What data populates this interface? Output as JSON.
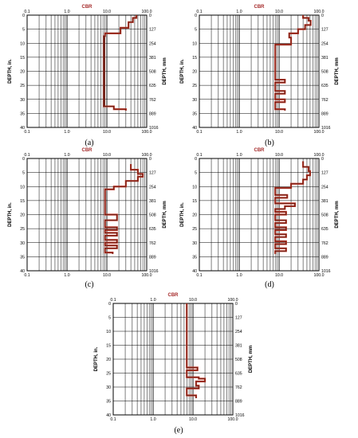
{
  "figure": {
    "x_axis_label": "CBR",
    "y_axis_label_left": "DEPTH, in.",
    "y_axis_label_right": "DEPTH, mm",
    "x_ticks": [
      "0.1",
      "1.0",
      "10.0",
      "100.0"
    ],
    "y_ticks_in": [
      "0",
      "5",
      "10",
      "15",
      "20",
      "25",
      "30",
      "35",
      "40"
    ],
    "y_ticks_mm": [
      "0",
      "127",
      "254",
      "381",
      "508",
      "635",
      "762",
      "889",
      "1016"
    ],
    "colors": {
      "profile": "#c0392b",
      "profile_dark": "#5a1a10",
      "grid": "#000000",
      "title": "#a52a2a"
    }
  },
  "chart_data": [
    {
      "type": "line",
      "panel": "(a)",
      "x_scale": "log",
      "xlim": [
        0.1,
        100
      ],
      "ylim": [
        0,
        40
      ],
      "y_inverted": true,
      "grid": true,
      "xlabel": "CBR",
      "ylabel": "DEPTH, in.",
      "ylabel_right": "DEPTH, mm",
      "series": [
        {
          "points": [
            [
              55,
              0
            ],
            [
              55,
              1
            ],
            [
              45,
              1
            ],
            [
              45,
              2.5
            ],
            [
              35,
              2.5
            ],
            [
              35,
              4.5
            ],
            [
              22,
              4.5
            ],
            [
              22,
              6.5
            ],
            [
              9,
              6.5
            ],
            [
              9,
              7.5
            ],
            [
              8.5,
              7.5
            ],
            [
              8.5,
              32.5
            ],
            [
              15,
              32.5
            ],
            [
              15,
              33.5
            ],
            [
              30,
              33.5
            ],
            [
              30,
              34
            ]
          ]
        }
      ]
    },
    {
      "type": "line",
      "panel": "(b)",
      "x_scale": "log",
      "xlim": [
        0.1,
        100
      ],
      "ylim": [
        0,
        40
      ],
      "y_inverted": true,
      "grid": true,
      "xlabel": "CBR",
      "ylabel": "DEPTH, in.",
      "ylabel_right": "DEPTH, mm",
      "series": [
        {
          "points": [
            [
              40,
              0
            ],
            [
              40,
              1
            ],
            [
              55,
              1
            ],
            [
              55,
              2
            ],
            [
              62,
              2
            ],
            [
              62,
              3.5
            ],
            [
              45,
              3.5
            ],
            [
              45,
              5
            ],
            [
              30,
              5
            ],
            [
              30,
              6.5
            ],
            [
              18,
              6.5
            ],
            [
              18,
              8
            ],
            [
              20,
              8
            ],
            [
              20,
              10.5
            ],
            [
              8,
              10.5
            ],
            [
              8,
              23
            ],
            [
              14,
              23
            ],
            [
              14,
              24
            ],
            [
              8,
              24
            ],
            [
              8,
              27
            ],
            [
              14,
              27
            ],
            [
              14,
              28
            ],
            [
              8,
              28
            ],
            [
              8,
              30
            ],
            [
              14,
              30
            ],
            [
              14,
              31
            ],
            [
              8,
              31
            ],
            [
              8,
              33.5
            ],
            [
              14,
              33.5
            ],
            [
              14,
              34
            ]
          ]
        }
      ]
    },
    {
      "type": "line",
      "panel": "(c)",
      "x_scale": "log",
      "xlim": [
        0.1,
        100
      ],
      "ylim": [
        0,
        40
      ],
      "y_inverted": true,
      "grid": true,
      "xlabel": "CBR",
      "ylabel": "DEPTH, in.",
      "ylabel_right": "DEPTH, mm",
      "series": [
        {
          "points": [
            [
              40,
              2
            ],
            [
              40,
              4
            ],
            [
              60,
              4
            ],
            [
              60,
              5.5
            ],
            [
              80,
              5.5
            ],
            [
              80,
              6.5
            ],
            [
              60,
              6.5
            ],
            [
              60,
              8
            ],
            [
              30,
              8
            ],
            [
              30,
              10
            ],
            [
              15,
              10
            ],
            [
              15,
              11
            ],
            [
              9,
              11
            ],
            [
              9,
              20
            ],
            [
              18,
              20
            ],
            [
              18,
              22
            ],
            [
              9,
              22
            ],
            [
              9,
              24.5
            ],
            [
              18,
              24.5
            ],
            [
              18,
              25.5
            ],
            [
              9,
              25.5
            ],
            [
              9,
              26.5
            ],
            [
              18,
              26.5
            ],
            [
              18,
              27.5
            ],
            [
              9,
              27.5
            ],
            [
              9,
              29
            ],
            [
              18,
              29
            ],
            [
              18,
              30
            ],
            [
              9,
              30
            ],
            [
              9,
              31
            ],
            [
              18,
              31
            ],
            [
              18,
              32
            ],
            [
              9,
              32
            ],
            [
              9,
              33.5
            ],
            [
              14,
              33.5
            ],
            [
              14,
              34
            ]
          ]
        }
      ]
    },
    {
      "type": "line",
      "panel": "(d)",
      "x_scale": "log",
      "xlim": [
        0.1,
        100
      ],
      "ylim": [
        0,
        40
      ],
      "y_inverted": true,
      "grid": true,
      "xlabel": "CBR",
      "ylabel": "DEPTH, in.",
      "ylabel_right": "DEPTH, mm",
      "series": [
        {
          "points": [
            [
              40,
              1
            ],
            [
              40,
              3
            ],
            [
              55,
              3
            ],
            [
              55,
              4.5
            ],
            [
              60,
              4.5
            ],
            [
              60,
              6
            ],
            [
              50,
              6
            ],
            [
              50,
              7.5
            ],
            [
              40,
              7.5
            ],
            [
              40,
              9
            ],
            [
              20,
              9
            ],
            [
              20,
              10.5
            ],
            [
              8,
              10.5
            ],
            [
              8,
              13
            ],
            [
              16,
              13
            ],
            [
              16,
              14
            ],
            [
              8,
              14
            ],
            [
              8,
              16
            ],
            [
              25,
              16
            ],
            [
              25,
              17
            ],
            [
              14,
              17
            ],
            [
              14,
              18
            ],
            [
              8,
              18
            ],
            [
              8,
              19
            ],
            [
              15,
              19
            ],
            [
              15,
              20
            ],
            [
              8,
              20
            ],
            [
              8,
              22
            ],
            [
              15,
              22
            ],
            [
              15,
              23
            ],
            [
              8,
              23
            ],
            [
              8,
              24.5
            ],
            [
              15,
              24.5
            ],
            [
              15,
              25.5
            ],
            [
              8,
              25.5
            ],
            [
              8,
              27
            ],
            [
              15,
              27
            ],
            [
              15,
              28
            ],
            [
              8,
              28
            ],
            [
              8,
              29.5
            ],
            [
              15,
              29.5
            ],
            [
              15,
              30.5
            ],
            [
              8,
              30.5
            ],
            [
              8,
              32
            ],
            [
              15,
              32
            ],
            [
              15,
              33
            ],
            [
              8,
              33
            ],
            [
              8,
              34
            ]
          ]
        }
      ]
    },
    {
      "type": "line",
      "panel": "(e)",
      "x_scale": "log",
      "xlim": [
        0.1,
        100
      ],
      "ylim": [
        0,
        40
      ],
      "y_inverted": true,
      "grid": true,
      "xlabel": "CBR",
      "ylabel": "DEPTH, in.",
      "ylabel_right": "DEPTH, mm",
      "series": [
        {
          "points": [
            [
              7,
              0
            ],
            [
              7,
              23
            ],
            [
              13,
              23
            ],
            [
              13,
              24
            ],
            [
              7,
              24
            ],
            [
              7,
              26.5
            ],
            [
              14,
              26.5
            ],
            [
              14,
              27
            ],
            [
              20,
              27
            ],
            [
              20,
              28
            ],
            [
              12,
              28
            ],
            [
              12,
              29.5
            ],
            [
              14,
              29.5
            ],
            [
              14,
              30.5
            ],
            [
              7,
              30.5
            ],
            [
              7,
              33
            ],
            [
              12,
              33
            ],
            [
              12,
              34
            ]
          ]
        }
      ]
    }
  ]
}
